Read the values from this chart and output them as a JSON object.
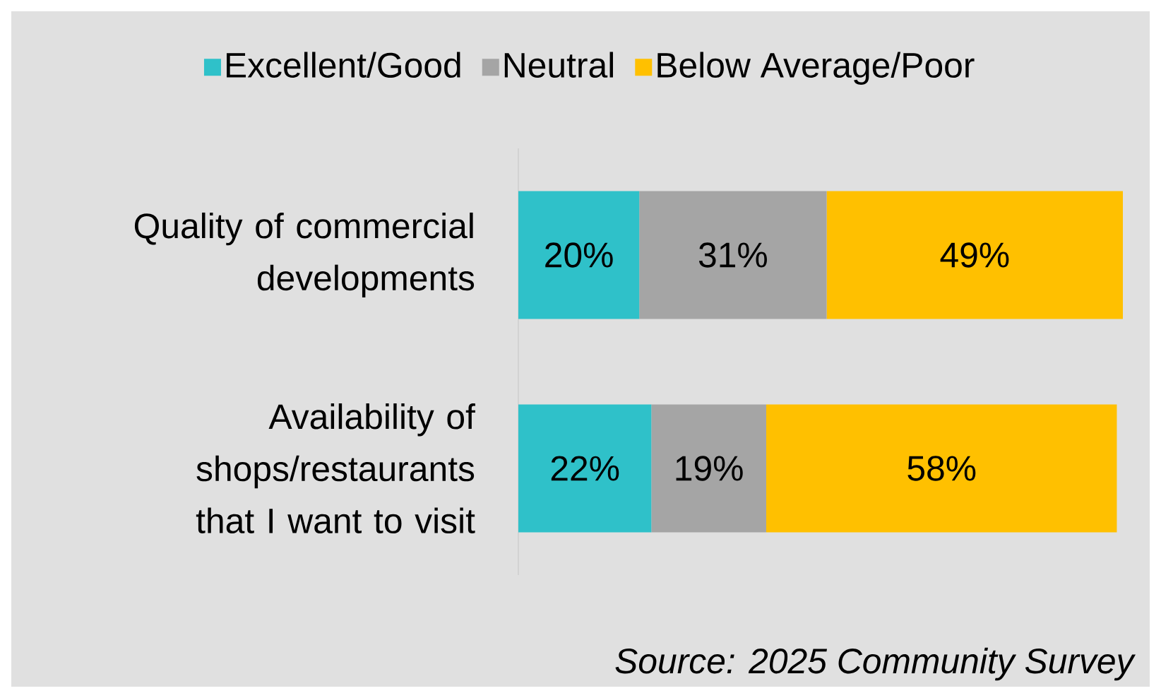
{
  "chart_data": {
    "type": "bar",
    "orientation": "horizontal",
    "stacked": true,
    "categories": [
      "Quality of commercial developments",
      "Availability of shops/restaurants that I want to visit"
    ],
    "series": [
      {
        "name": "Excellent/Good",
        "color": "#2fc1c9",
        "values": [
          20,
          22
        ],
        "value_labels": [
          "20%",
          "22%"
        ]
      },
      {
        "name": "Neutral",
        "color": "#a5a5a5",
        "values": [
          31,
          19
        ],
        "value_labels": [
          "31%",
          "19%"
        ]
      },
      {
        "name": "Below Average/Poor",
        "color": "#ffc000",
        "values": [
          49,
          58
        ],
        "value_labels": [
          "49%",
          "58%"
        ]
      }
    ],
    "legend": "top",
    "annotations": [
      "Source: 2025 Community Survey"
    ]
  }
}
